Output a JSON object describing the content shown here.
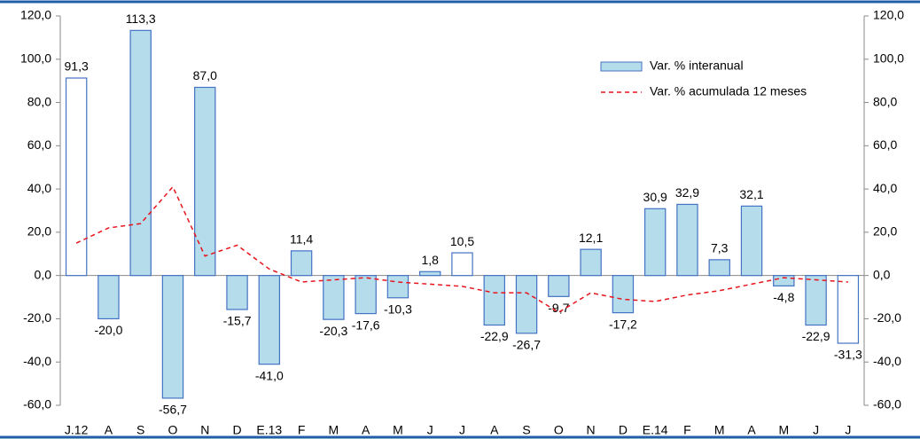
{
  "chart_data": {
    "type": "bar",
    "categories": [
      "J.12",
      "A",
      "S",
      "O",
      "N",
      "D",
      "E.13",
      "F",
      "M",
      "A",
      "M",
      "J",
      "J",
      "A",
      "S",
      "O",
      "N",
      "D",
      "E.14",
      "F",
      "M",
      "A",
      "M",
      "J",
      "J"
    ],
    "series": [
      {
        "name": "Var. % interanual",
        "type": "bar",
        "color": "#b4dcea",
        "stroke": "#4472c4",
        "colors": [
          "#ffffff",
          "#b4dcea",
          "#b4dcea",
          "#b4dcea",
          "#b4dcea",
          "#b4dcea",
          "#b4dcea",
          "#b4dcea",
          "#b4dcea",
          "#b4dcea",
          "#b4dcea",
          "#b4dcea",
          "#ffffff",
          "#b4dcea",
          "#b4dcea",
          "#b4dcea",
          "#b4dcea",
          "#b4dcea",
          "#b4dcea",
          "#b4dcea",
          "#b4dcea",
          "#b4dcea",
          "#b4dcea",
          "#b4dcea",
          "#ffffff"
        ],
        "values": [
          91.3,
          -20.0,
          113.3,
          -56.7,
          87.0,
          -15.7,
          -41.0,
          11.4,
          -20.3,
          -17.6,
          -10.3,
          1.8,
          10.5,
          -22.9,
          -26.7,
          -9.7,
          12.1,
          -17.2,
          30.9,
          32.9,
          7.3,
          32.1,
          -4.8,
          -22.9,
          -31.3
        ],
        "value_labels": [
          "91,3",
          "-20,0",
          "113,3",
          "-56,7",
          "87,0",
          "-15,7",
          "-41,0",
          "11,4",
          "-20,3",
          "-17,6",
          "-10,3",
          "1,8",
          "10,5",
          "-22,9",
          "-26,7",
          "-9,7",
          "12,1",
          "-17,2",
          "30,9",
          "32,9",
          "7,3",
          "32,1",
          "-4,8",
          "-22,9",
          "-31,3"
        ]
      },
      {
        "name": "Var. % acumulada 12 meses",
        "type": "line",
        "color": "#e8141c",
        "dashed": true,
        "values": [
          15,
          22,
          24,
          41,
          9,
          14,
          3,
          -3,
          -2,
          -1,
          -3,
          -4,
          -5,
          -8,
          -8,
          -17,
          -8,
          -11,
          -12,
          -9,
          -7,
          -4,
          -1,
          -2,
          -3
        ]
      }
    ],
    "ylim": [
      -60,
      120
    ],
    "yticks": [
      {
        "value": -60,
        "label": "-60,0"
      },
      {
        "value": -40,
        "label": "-40,0"
      },
      {
        "value": -20,
        "label": "-20,0"
      },
      {
        "value": 0,
        "label": "0,0"
      },
      {
        "value": 20,
        "label": "20,0"
      },
      {
        "value": 40,
        "label": "40,0"
      },
      {
        "value": 60,
        "label": "60,0"
      },
      {
        "value": 80,
        "label": "80,0"
      },
      {
        "value": 100,
        "label": "100,0"
      },
      {
        "value": 120,
        "label": "120,0"
      }
    ],
    "y2lim": [
      -60,
      120
    ],
    "y2ticks": [
      {
        "value": -60,
        "label": "-60,0"
      },
      {
        "value": -40,
        "label": "-40,0"
      },
      {
        "value": -20,
        "label": "-20,0"
      },
      {
        "value": 0,
        "label": "0,0"
      },
      {
        "value": 20,
        "label": "20,0"
      },
      {
        "value": 40,
        "label": "40,0"
      },
      {
        "value": 60,
        "label": "60,0"
      },
      {
        "value": 80,
        "label": "80,0"
      },
      {
        "value": 100,
        "label": "100,0"
      },
      {
        "value": 120,
        "label": "120,0"
      }
    ],
    "grid": false,
    "legend": "upper right"
  }
}
